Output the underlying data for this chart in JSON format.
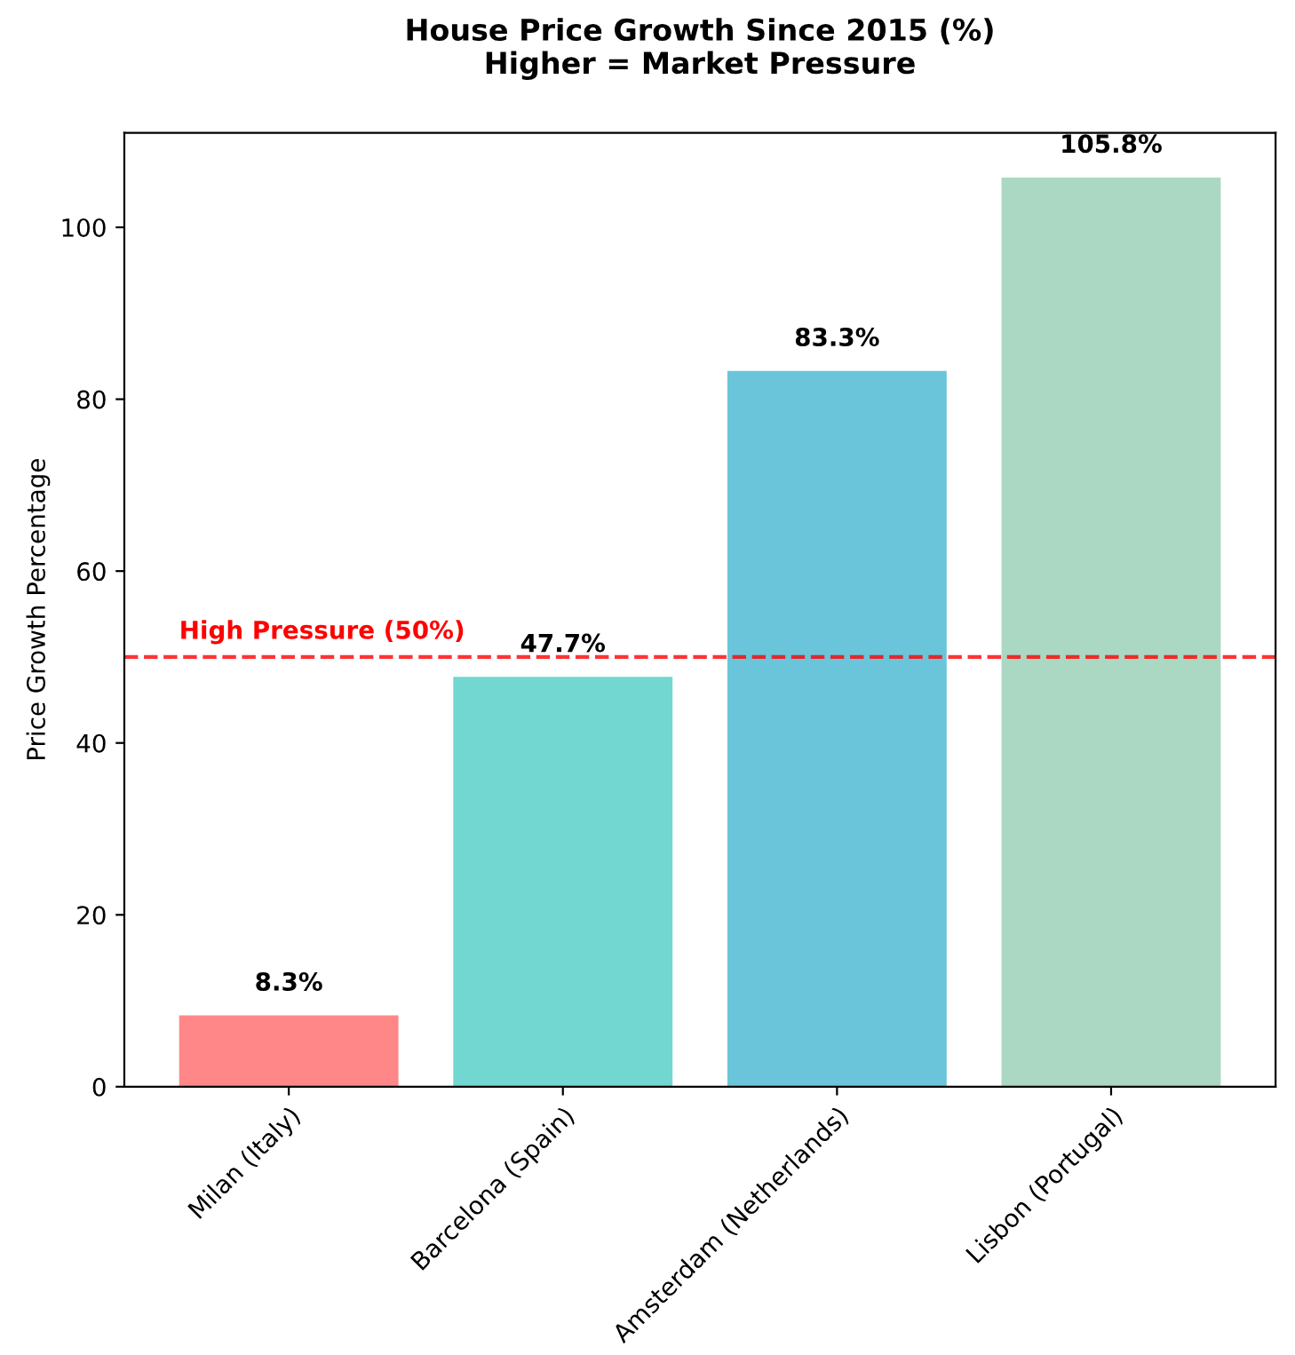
{
  "chart_data": {
    "type": "bar",
    "title": "House Price Growth Since 2015 (%)\nHigher = Market Pressure",
    "ylabel": "Price Growth Percentage",
    "categories": [
      "Milan (Italy)",
      "Barcelona (Spain)",
      "Amsterdam (Netherlands)",
      "Lisbon (Portugal)"
    ],
    "values": [
      8.3,
      47.7,
      83.3,
      105.8
    ],
    "colors": [
      "#ff8787",
      "#71d7d0",
      "#6ac5da",
      "#abd8c3"
    ],
    "value_labels": [
      "8.3%",
      "47.7%",
      "83.3%",
      "105.8%"
    ],
    "ylim": [
      0,
      111
    ],
    "yticks": [
      0,
      20,
      40,
      60,
      80,
      100
    ],
    "grid": false,
    "legend": false,
    "ref_lines": [
      {
        "axis": "y",
        "value": 50,
        "label": "High Pressure (50%)",
        "color": "#ff0000",
        "line_style": "dashed"
      }
    ]
  }
}
